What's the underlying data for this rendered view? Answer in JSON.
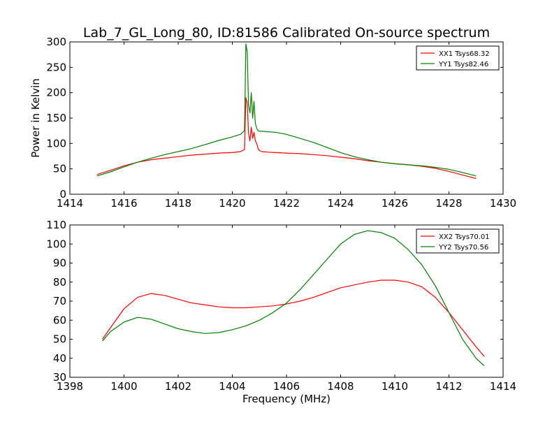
{
  "figure_title": "Lab_7_GL_Long_80, ID:81586 Calibrated On-source spectrum",
  "chart_data": [
    {
      "type": "line",
      "title": "Lab_7_GL_Long_80, ID:81586 Calibrated On-source spectrum",
      "xlabel": "",
      "ylabel": "Power in Kelvin",
      "xlim": [
        1414,
        1430
      ],
      "ylim": [
        0,
        300
      ],
      "xticks": [
        "1414",
        "1416",
        "1418",
        "1420",
        "1422",
        "1424",
        "1426",
        "1428",
        "1430"
      ],
      "yticks": [
        "0",
        "50",
        "100",
        "150",
        "200",
        "250",
        "300"
      ],
      "grid": false,
      "legend_position": "top-right",
      "series": [
        {
          "name": "XX1 Tsys68.32",
          "color": "#ff0000",
          "x": [
            1415.0,
            1415.5,
            1416.0,
            1416.5,
            1417.0,
            1417.5,
            1418.0,
            1418.5,
            1419.0,
            1419.5,
            1420.0,
            1420.3,
            1420.45,
            1420.5,
            1420.55,
            1420.6,
            1420.65,
            1420.7,
            1420.75,
            1420.8,
            1420.85,
            1420.9,
            1420.95,
            1421.0,
            1421.1,
            1421.3,
            1421.6,
            1422.0,
            1422.5,
            1423.0,
            1423.5,
            1424.0,
            1424.5,
            1425.0,
            1425.5,
            1426.0,
            1426.5,
            1427.0,
            1427.5,
            1428.0,
            1428.5,
            1429.0
          ],
          "y": [
            39,
            47,
            56,
            63,
            68,
            71,
            74,
            77,
            79,
            81,
            82,
            84,
            88,
            190,
            180,
            120,
            105,
            132,
            110,
            122,
            105,
            100,
            90,
            86,
            84,
            83,
            82,
            81,
            80,
            78,
            76,
            73,
            70,
            66,
            63,
            60,
            58,
            55,
            51,
            45,
            38,
            31
          ]
        },
        {
          "name": "YY1 Tsys82.46",
          "color": "#008000",
          "x": [
            1415.0,
            1415.5,
            1416.0,
            1416.5,
            1417.0,
            1417.5,
            1418.0,
            1418.5,
            1419.0,
            1419.5,
            1420.0,
            1420.3,
            1420.45,
            1420.5,
            1420.55,
            1420.6,
            1420.65,
            1420.7,
            1420.75,
            1420.8,
            1420.85,
            1420.9,
            1420.95,
            1421.0,
            1421.1,
            1421.3,
            1421.6,
            1422.0,
            1422.5,
            1423.0,
            1423.5,
            1424.0,
            1424.5,
            1425.0,
            1425.5,
            1426.0,
            1426.5,
            1427.0,
            1427.5,
            1428.0,
            1428.5,
            1429.0
          ],
          "y": [
            36,
            44,
            54,
            63,
            71,
            78,
            84,
            90,
            98,
            106,
            113,
            118,
            125,
            296,
            280,
            175,
            160,
            200,
            150,
            183,
            140,
            130,
            125,
            124,
            124,
            123,
            122,
            118,
            110,
            102,
            92,
            82,
            74,
            68,
            63,
            60,
            58,
            56,
            53,
            49,
            43,
            36
          ]
        }
      ]
    },
    {
      "type": "line",
      "title": "",
      "xlabel": "Frequency (MHz)",
      "ylabel": "",
      "xlim": [
        1398,
        1414
      ],
      "ylim": [
        30,
        110
      ],
      "xticks": [
        "1398",
        "1400",
        "1402",
        "1404",
        "1406",
        "1408",
        "1410",
        "1412",
        "1414"
      ],
      "yticks": [
        "30",
        "40",
        "50",
        "60",
        "70",
        "80",
        "90",
        "100",
        "110"
      ],
      "grid": false,
      "legend_position": "top-right",
      "series": [
        {
          "name": "XX2 Tsys70.01",
          "color": "#ff0000",
          "x": [
            1399.2,
            1399.5,
            1400.0,
            1400.5,
            1401.0,
            1401.5,
            1402.0,
            1402.5,
            1403.0,
            1403.5,
            1404.0,
            1404.5,
            1405.0,
            1405.5,
            1406.0,
            1406.5,
            1407.0,
            1407.5,
            1408.0,
            1408.5,
            1409.0,
            1409.5,
            1410.0,
            1410.5,
            1411.0,
            1411.5,
            1412.0,
            1412.5,
            1413.0,
            1413.3
          ],
          "y": [
            50,
            56,
            66,
            72,
            74,
            73,
            71,
            69,
            68,
            67,
            66.5,
            66.5,
            67,
            67.5,
            68.5,
            70,
            72,
            74.5,
            77,
            78.5,
            80,
            81,
            81,
            80,
            77.5,
            72,
            64,
            55,
            46,
            41
          ]
        },
        {
          "name": "YY2 Tsys70.56",
          "color": "#008000",
          "x": [
            1399.2,
            1399.5,
            1400.0,
            1400.5,
            1401.0,
            1401.5,
            1402.0,
            1402.5,
            1403.0,
            1403.5,
            1404.0,
            1404.5,
            1405.0,
            1405.5,
            1406.0,
            1406.5,
            1407.0,
            1407.5,
            1408.0,
            1408.5,
            1409.0,
            1409.5,
            1410.0,
            1410.5,
            1411.0,
            1411.5,
            1412.0,
            1412.5,
            1413.0,
            1413.3
          ],
          "y": [
            49,
            54,
            59,
            61.5,
            60.5,
            58,
            55.5,
            54,
            53,
            53.5,
            55,
            57,
            60,
            64,
            69,
            76,
            84,
            92,
            100,
            105,
            107,
            106,
            103,
            97,
            89,
            78,
            64,
            50,
            40,
            36
          ]
        }
      ]
    }
  ]
}
